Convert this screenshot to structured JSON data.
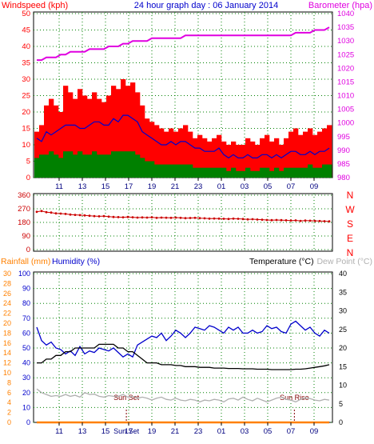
{
  "chart_data": [
    {
      "type": "area",
      "title": "24 hour graph day : 06 January 2014",
      "left_axis": {
        "label": "Windspeed (kph)",
        "range": [
          0,
          50
        ],
        "ticks": [
          "0",
          "5",
          "10",
          "15",
          "20",
          "25",
          "30",
          "35",
          "40",
          "45",
          "50"
        ],
        "color": "#ff0000"
      },
      "right_axis": {
        "label": "Barometer (hpa)",
        "range": [
          980,
          1040
        ],
        "ticks": [
          "980",
          "985",
          "990",
          "995",
          "1000",
          "1005",
          "1010",
          "1015",
          "1020",
          "1025",
          "1030",
          "1035",
          "1040"
        ],
        "color": "#e000e0"
      },
      "x_ticks": [
        "11",
        "13",
        "15",
        "17",
        "19",
        "21",
        "23",
        "01",
        "03",
        "05",
        "07",
        "09"
      ],
      "grid": true,
      "series": [
        {
          "name": "Windspeed (kph)",
          "color": "#ff0000",
          "values": [
            14,
            16,
            22,
            24,
            22,
            20,
            28,
            26,
            24,
            27,
            25,
            24,
            26,
            24,
            23,
            25,
            28,
            27,
            30,
            28,
            29,
            26,
            22,
            18,
            17,
            16,
            15,
            14,
            15,
            14,
            15,
            16,
            14,
            12,
            13,
            12,
            11,
            12,
            13,
            11,
            10,
            11,
            10,
            10,
            12,
            11,
            10,
            12,
            13,
            11,
            12,
            10,
            12,
            14,
            15,
            13,
            14,
            15,
            13,
            14,
            15,
            16
          ]
        },
        {
          "color": "#0000cc",
          "values": [
            12,
            11,
            14,
            13,
            14,
            15,
            16,
            16,
            16,
            15,
            15,
            16,
            17,
            17,
            16,
            16,
            18,
            17,
            19,
            19,
            18,
            17,
            14,
            13,
            12,
            11,
            10,
            10,
            11,
            10,
            11,
            11,
            10,
            9,
            9,
            8,
            8,
            8,
            9,
            7,
            6,
            7,
            6,
            6,
            7,
            6,
            6,
            7,
            7,
            6,
            7,
            6,
            7,
            8,
            8,
            7,
            7,
            8,
            7,
            8,
            8,
            9
          ]
        },
        {
          "color": "#008000",
          "values": [
            6,
            7,
            7,
            8,
            7,
            6,
            8,
            8,
            7,
            8,
            7,
            7,
            8,
            7,
            7,
            7,
            8,
            8,
            8,
            8,
            8,
            7,
            6,
            5,
            5,
            4,
            4,
            4,
            4,
            4,
            4,
            4,
            4,
            3,
            3,
            3,
            3,
            3,
            3,
            3,
            2,
            3,
            2,
            2,
            3,
            2,
            2,
            3,
            3,
            2,
            3,
            2,
            3,
            3,
            3,
            3,
            3,
            4,
            3,
            3,
            4,
            4
          ]
        },
        {
          "name": "Barometer (hpa)",
          "color": "#e000e0",
          "values": [
            1023,
            1023,
            1024,
            1024,
            1024,
            1025,
            1025,
            1026,
            1026,
            1026,
            1026,
            1027,
            1027,
            1027,
            1027,
            1028,
            1028,
            1028,
            1029,
            1029,
            1030,
            1030,
            1030,
            1030,
            1031,
            1031,
            1031,
            1031,
            1031,
            1031,
            1031,
            1032,
            1032,
            1032,
            1032,
            1032,
            1032,
            1032,
            1032,
            1032,
            1032,
            1032,
            1032,
            1032,
            1032,
            1032,
            1032,
            1032,
            1032,
            1032,
            1032,
            1032,
            1032,
            1032,
            1033,
            1033,
            1033,
            1033,
            1034,
            1034,
            1034,
            1035
          ]
        }
      ]
    },
    {
      "type": "scatter",
      "left_axis": {
        "range": [
          0,
          360
        ],
        "ticks": [
          "0",
          "90",
          "180",
          "270",
          "360"
        ],
        "color": "#cc0000"
      },
      "right_labels": [
        "N",
        "W",
        "S",
        "E",
        "N"
      ],
      "right_color": "#ff0000",
      "x_ticks": [
        "11",
        "13",
        "15",
        "17",
        "19",
        "21",
        "23",
        "01",
        "03",
        "05",
        "07",
        "09"
      ],
      "grid": true,
      "series": [
        {
          "color": "#cc0000",
          "values": [
            250,
            255,
            248,
            245,
            240,
            238,
            236,
            232,
            230,
            228,
            226,
            224,
            222,
            220,
            222,
            218,
            216,
            215,
            214,
            216,
            214,
            212,
            213,
            212,
            214,
            210,
            212,
            211,
            210,
            212,
            210,
            208,
            209,
            210,
            208,
            207,
            205,
            206,
            205,
            204,
            203,
            205,
            204,
            202,
            200,
            201,
            199,
            198,
            196,
            195,
            196,
            195,
            194,
            192,
            193,
            190,
            192,
            191,
            190,
            189,
            188,
            187
          ]
        }
      ]
    },
    {
      "type": "line",
      "left_axis_rainfall": {
        "label": "Rainfall (mm)",
        "range": [
          0,
          30
        ],
        "ticks": [
          "0",
          "2",
          "4",
          "6",
          "8",
          "10",
          "12",
          "14",
          "16",
          "18",
          "20",
          "22",
          "24",
          "26",
          "28",
          "30"
        ],
        "color": "#ff8000"
      },
      "left_axis_humidity": {
        "label": "Humidity (%)",
        "range": [
          0,
          100
        ],
        "ticks": [
          "0",
          "10",
          "20",
          "30",
          "40",
          "50",
          "60",
          "70",
          "80",
          "90",
          "100"
        ],
        "color": "#0000cc"
      },
      "right_axis": {
        "label": "Temperature (°C)",
        "range": [
          0,
          40
        ],
        "ticks": [
          "0",
          "5",
          "10",
          "15",
          "20",
          "25",
          "30",
          "35",
          "40"
        ],
        "color": "#000000"
      },
      "dew_label": "Dew Point (°C)",
      "x_ticks": [
        "11",
        "13",
        "15",
        "17",
        "19",
        "21",
        "23",
        "01",
        "03",
        "05",
        "07",
        "09"
      ],
      "extra_ticks": [
        "Sun Set"
      ],
      "grid": true,
      "markers": [
        {
          "label": "Sun Set",
          "x": 16.8
        },
        {
          "label": "Sun Rise",
          "x": 31.3
        }
      ],
      "series": [
        {
          "name": "Humidity (%)",
          "axis": "humidity",
          "color": "#0000cc",
          "values": [
            64,
            55,
            52,
            54,
            50,
            49,
            46,
            48,
            45,
            51,
            46,
            48,
            47,
            50,
            49,
            48,
            50,
            47,
            44,
            46,
            44,
            52,
            54,
            56,
            58,
            57,
            60,
            55,
            58,
            62,
            60,
            57,
            60,
            64,
            63,
            62,
            65,
            64,
            62,
            60,
            64,
            62,
            64,
            60,
            60,
            62,
            60,
            61,
            65,
            63,
            64,
            61,
            60,
            66,
            68,
            65,
            62,
            64,
            60,
            58,
            62,
            60
          ]
        },
        {
          "name": "Temperature (°C)",
          "axis": "temperature",
          "color": "#000000",
          "values": [
            16,
            16,
            17,
            17,
            18,
            18,
            19,
            19,
            20,
            20,
            20,
            20,
            20,
            21,
            21,
            21,
            21,
            20,
            20,
            19,
            19,
            18,
            17,
            16,
            16,
            16,
            15.5,
            15.5,
            15.5,
            15.3,
            15.3,
            15,
            15,
            15,
            14.8,
            14.8,
            14.8,
            14.6,
            14.6,
            14.6,
            14.5,
            14.5,
            14.5,
            14.4,
            14.4,
            14.4,
            14.3,
            14.3,
            14.3,
            14.2,
            14.2,
            14.2,
            14.2,
            14.2,
            14.3,
            14.3,
            14.4,
            14.6,
            14.8,
            15,
            15.2,
            15.5
          ]
        },
        {
          "name": "Dew Point (°C)",
          "axis": "temperature",
          "color": "#b0b0b0",
          "values": [
            9,
            8,
            7.5,
            7,
            7.2,
            7,
            7.5,
            7,
            7.3,
            6.8,
            8,
            7.5,
            7.6,
            7,
            6.8,
            7.2,
            7,
            7,
            7.5,
            6.8,
            7,
            6.5,
            6.8,
            6.5,
            6,
            6.5,
            6.8,
            6.2,
            6,
            6.5,
            6,
            5.8,
            6.2,
            6,
            5.5,
            6,
            5.8,
            6.2,
            6,
            5.5,
            6.3,
            6.5,
            6,
            6.8,
            6.2,
            5.8,
            6.5,
            6,
            5.5,
            6,
            6.5,
            6.8,
            6.2,
            6,
            5.5,
            6.2,
            6.6,
            6.4,
            6,
            5.8,
            6.2,
            6
          ]
        },
        {
          "name": "Rainfall (mm)",
          "axis": "rainfall",
          "color": "#ff8000",
          "values": [
            0,
            0,
            0,
            0,
            0,
            0,
            0,
            0,
            0,
            0,
            0,
            0,
            0,
            0,
            0,
            0,
            0,
            0,
            0,
            0,
            0,
            0,
            0,
            0,
            0,
            0,
            0,
            0,
            0,
            0,
            0,
            0,
            0,
            0,
            0,
            0,
            0,
            0,
            0,
            0,
            0,
            0,
            0,
            0,
            0,
            0,
            0,
            0,
            0,
            0,
            0,
            0,
            0,
            0,
            0,
            0,
            0,
            0,
            0,
            0,
            0,
            0
          ]
        }
      ]
    }
  ]
}
